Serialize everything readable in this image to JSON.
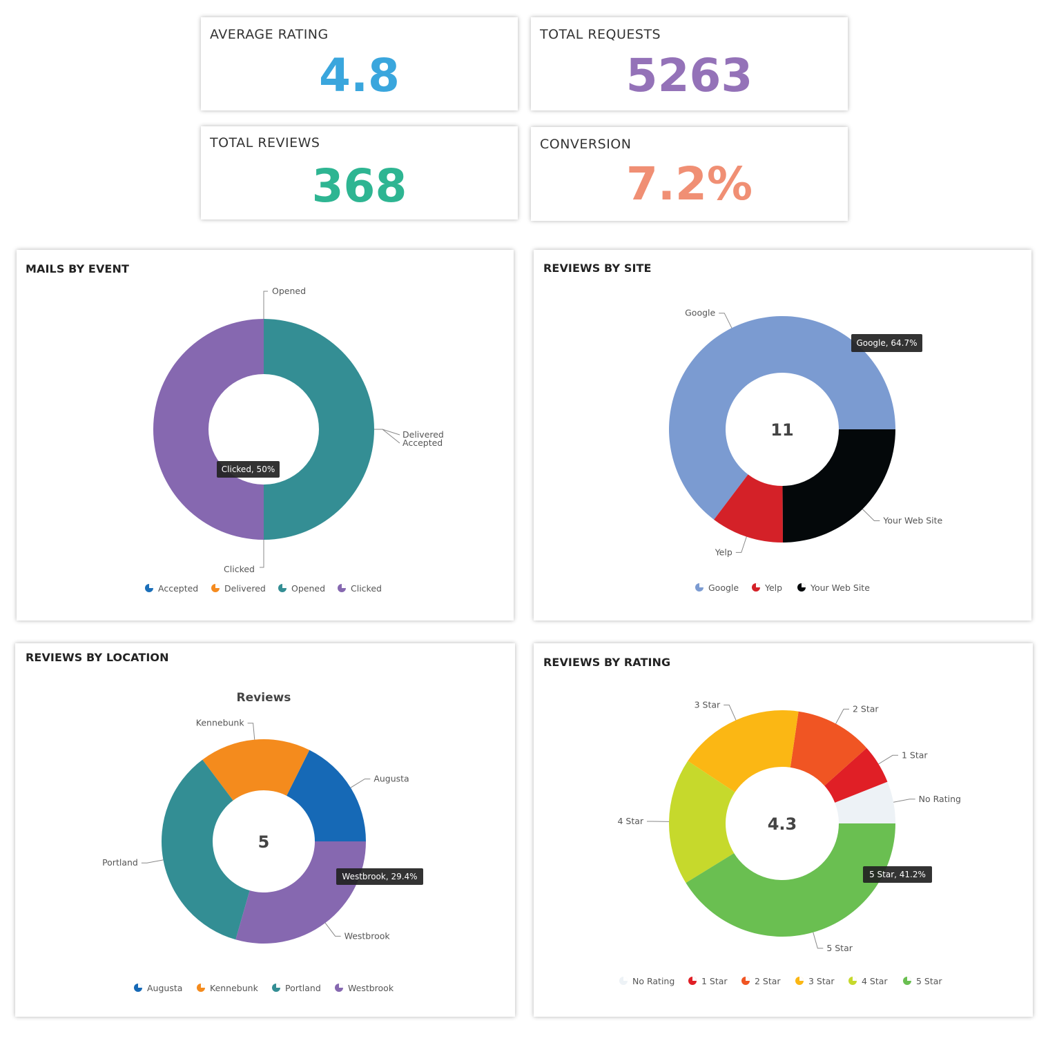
{
  "kpis": {
    "average_rating": {
      "label": "AVERAGE RATING",
      "value": "4.8",
      "color": "#3aa6dd"
    },
    "total_requests": {
      "label": "TOTAL REQUESTS",
      "value": "5263",
      "color": "#9472b8"
    },
    "total_reviews": {
      "label": "TOTAL REVIEWS",
      "value": "368",
      "color": "#2eb592"
    },
    "conversion": {
      "label": "CONVERSION",
      "value": "7.2%",
      "color": "#f08f74"
    }
  },
  "panels": {
    "mails": {
      "title": "MAILS BY EVENT"
    },
    "site": {
      "title": "REVIEWS BY SITE"
    },
    "location": {
      "title": "REVIEWS BY LOCATION"
    },
    "rating": {
      "title": "REVIEWS BY RATING"
    }
  },
  "chart_data": [
    {
      "type": "pie",
      "title": "MAILS BY EVENT",
      "categories": [
        "Accepted",
        "Delivered",
        "Opened",
        "Clicked"
      ],
      "values": [
        0,
        0,
        50,
        50
      ],
      "colors": [
        "#1b6fb9",
        "#f58b1f",
        "#348e94",
        "#8668b0"
      ],
      "tooltip": "Clicked, 50%",
      "legend": "bottom"
    },
    {
      "type": "pie",
      "title": "REVIEWS BY SITE",
      "categories": [
        "Google",
        "Yelp",
        "Your Web Site"
      ],
      "values": [
        64.7,
        10.4,
        24.9
      ],
      "colors": [
        "#7b9bd1",
        "#d42128",
        "#04080a"
      ],
      "center_label": "11",
      "tooltip": "Google, 64.7%",
      "legend": "bottom"
    },
    {
      "type": "pie",
      "title": "REVIEWS BY LOCATION",
      "subtitle": "Reviews",
      "categories": [
        "Augusta",
        "Kennebunk",
        "Portland",
        "Westbrook"
      ],
      "values": [
        17.6,
        17.6,
        35.3,
        29.4
      ],
      "colors": [
        "#1669b6",
        "#f48b1d",
        "#338e94",
        "#8668b0"
      ],
      "center_label": "5",
      "tooltip": "Westbrook, 29.4%",
      "legend": "bottom"
    },
    {
      "type": "pie",
      "title": "REVIEWS BY RATING",
      "categories": [
        "No Rating",
        "1 Star",
        "2 Star",
        "3 Star",
        "4 Star",
        "5 Star"
      ],
      "values": [
        6.0,
        5.6,
        11.1,
        18.0,
        18.1,
        41.2
      ],
      "colors": [
        "#edf2f6",
        "#e01f26",
        "#f05523",
        "#fbb714",
        "#c6d92c",
        "#6abf51"
      ],
      "center_label": "4.3",
      "tooltip": "5 Star, 41.2%",
      "legend": "bottom"
    }
  ]
}
